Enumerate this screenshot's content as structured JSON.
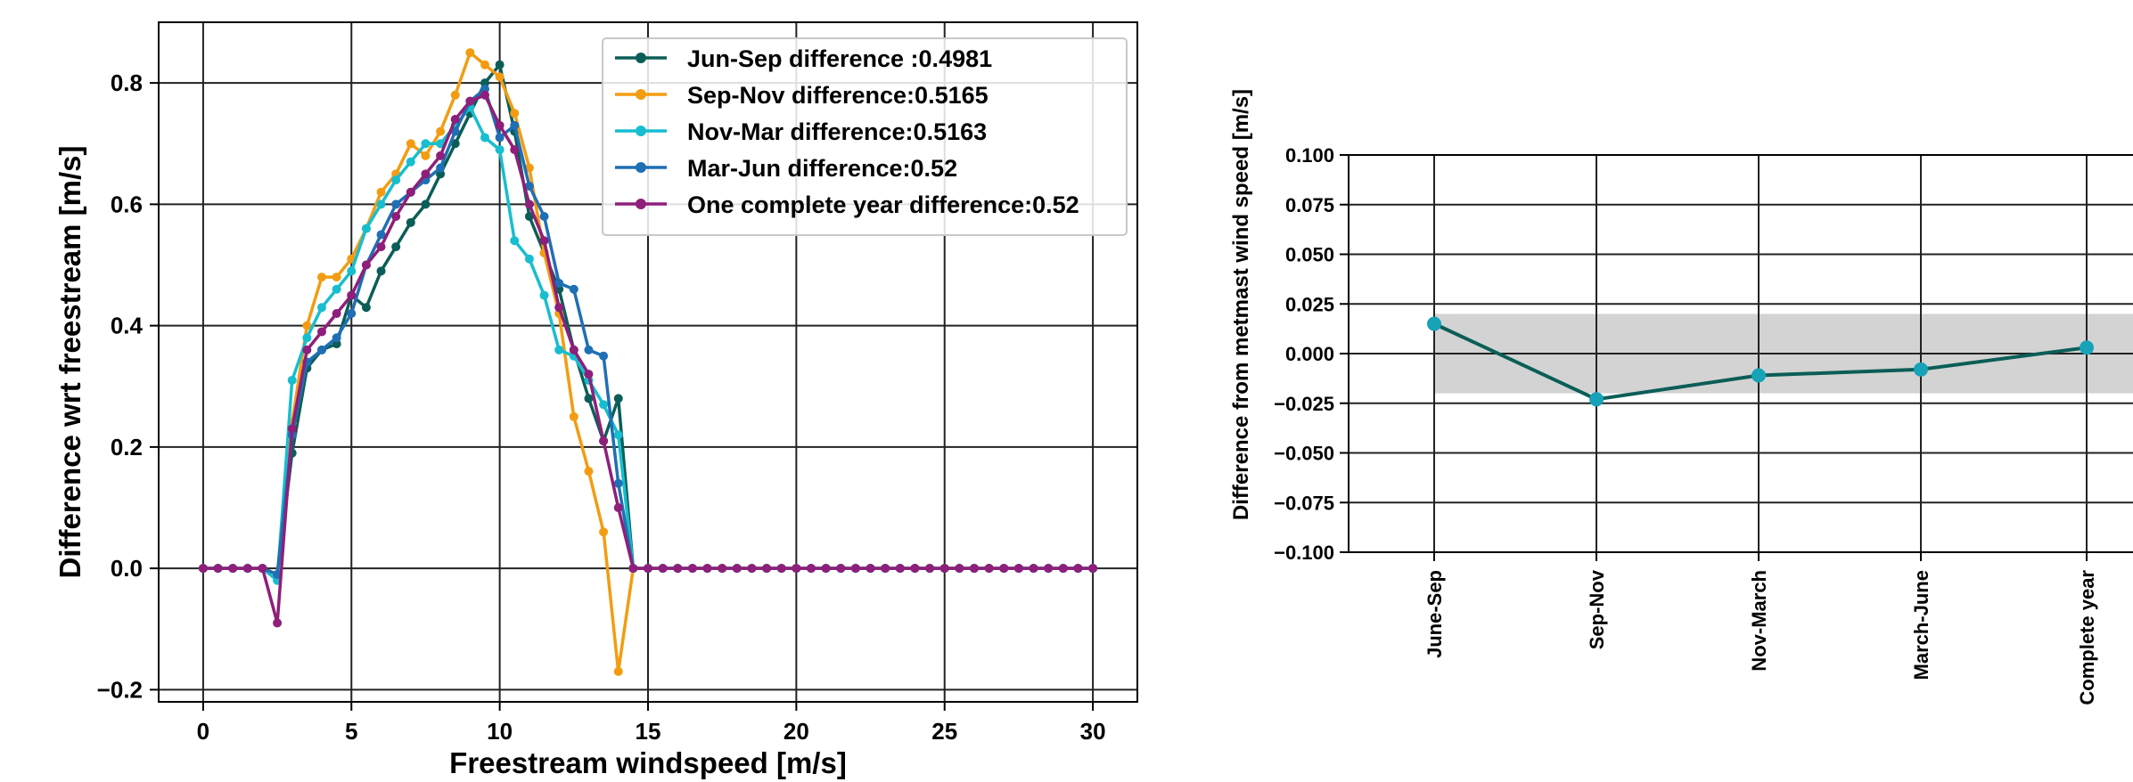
{
  "chart_data": [
    {
      "type": "line",
      "xlabel": "Freestream windspeed [m/s]",
      "ylabel": "Difference wrt freestream [m/s]",
      "xlim": [
        -1.5,
        31.5
      ],
      "ylim": [
        -0.22,
        0.9
      ],
      "xticks": [
        0,
        5,
        10,
        15,
        20,
        25,
        30
      ],
      "yticks": [
        -0.2,
        0.0,
        0.2,
        0.4,
        0.6,
        0.8
      ],
      "xtick_labels": [
        "0",
        "5",
        "10",
        "15",
        "20",
        "25",
        "30"
      ],
      "ytick_labels": [
        "−0.2",
        "0.0",
        "0.2",
        "0.4",
        "0.6",
        "0.8"
      ],
      "grid": true,
      "legend_position": "top-right",
      "x": [
        0,
        0.5,
        1,
        1.5,
        2,
        2.5,
        3,
        3.5,
        4,
        4.5,
        5,
        5.5,
        6,
        6.5,
        7,
        7.5,
        8,
        8.5,
        9,
        9.5,
        10,
        10.5,
        11,
        11.5,
        12,
        12.5,
        13,
        13.5,
        14,
        14.5,
        15,
        15.5,
        16,
        16.5,
        17,
        17.5,
        18,
        18.5,
        19,
        19.5,
        20,
        20.5,
        21,
        21.5,
        22,
        22.5,
        23,
        23.5,
        24,
        24.5,
        25,
        25.5,
        26,
        26.5,
        27,
        27.5,
        28,
        28.5,
        29,
        29.5,
        30
      ],
      "series": [
        {
          "name": "Jun-Sep difference :0.4981",
          "color": "#0b5e57",
          "values": [
            0,
            0,
            0,
            0,
            0,
            -0.01,
            0.19,
            0.33,
            0.36,
            0.37,
            0.45,
            0.43,
            0.49,
            0.53,
            0.57,
            0.6,
            0.65,
            0.7,
            0.75,
            0.8,
            0.83,
            0.72,
            0.58,
            0.52,
            0.46,
            0.36,
            0.28,
            0.21,
            0.28,
            0,
            0,
            0,
            0,
            0,
            0,
            0,
            0,
            0,
            0,
            0,
            0,
            0,
            0,
            0,
            0,
            0,
            0,
            0,
            0,
            0,
            0,
            0,
            0,
            0,
            0,
            0,
            0,
            0,
            0,
            0,
            0
          ]
        },
        {
          "name": "Sep-Nov difference:0.5165",
          "color": "#f39c12",
          "values": [
            0,
            0,
            0,
            0,
            0,
            -0.01,
            0.24,
            0.4,
            0.48,
            0.48,
            0.51,
            0.56,
            0.62,
            0.65,
            0.7,
            0.68,
            0.72,
            0.78,
            0.85,
            0.83,
            0.81,
            0.75,
            0.66,
            0.52,
            0.42,
            0.25,
            0.16,
            0.06,
            -0.17,
            0,
            0,
            0,
            0,
            0,
            0,
            0,
            0,
            0,
            0,
            0,
            0,
            0,
            0,
            0,
            0,
            0,
            0,
            0,
            0,
            0,
            0,
            0,
            0,
            0,
            0,
            0,
            0,
            0,
            0,
            0,
            0
          ]
        },
        {
          "name": "Nov-Mar difference:0.5163",
          "color": "#17becf",
          "values": [
            0,
            0,
            0,
            0,
            0,
            -0.02,
            0.31,
            0.38,
            0.43,
            0.46,
            0.49,
            0.56,
            0.6,
            0.64,
            0.67,
            0.7,
            0.7,
            0.73,
            0.76,
            0.71,
            0.69,
            0.54,
            0.51,
            0.45,
            0.36,
            0.35,
            0.31,
            0.27,
            0.22,
            0,
            0,
            0,
            0,
            0,
            0,
            0,
            0,
            0,
            0,
            0,
            0,
            0,
            0,
            0,
            0,
            0,
            0,
            0,
            0,
            0,
            0,
            0,
            0,
            0,
            0,
            0,
            0,
            0,
            0,
            0,
            0
          ]
        },
        {
          "name": "Mar-Jun difference:0.52",
          "color": "#1f6fb4",
          "values": [
            0,
            0,
            0,
            0,
            0,
            -0.01,
            0.22,
            0.34,
            0.36,
            0.38,
            0.42,
            0.5,
            0.55,
            0.6,
            0.62,
            0.64,
            0.66,
            0.72,
            0.77,
            0.79,
            0.71,
            0.73,
            0.63,
            0.58,
            0.47,
            0.46,
            0.36,
            0.35,
            0.14,
            0,
            0,
            0,
            0,
            0,
            0,
            0,
            0,
            0,
            0,
            0,
            0,
            0,
            0,
            0,
            0,
            0,
            0,
            0,
            0,
            0,
            0,
            0,
            0,
            0,
            0,
            0,
            0,
            0,
            0,
            0,
            0
          ]
        },
        {
          "name": "One complete year difference:0.52",
          "color": "#8e1f7a",
          "values": [
            0,
            0,
            0,
            0,
            0,
            -0.09,
            0.23,
            0.36,
            0.39,
            0.42,
            0.45,
            0.5,
            0.53,
            0.58,
            0.62,
            0.65,
            0.68,
            0.74,
            0.77,
            0.78,
            0.73,
            0.69,
            0.6,
            0.54,
            0.43,
            0.36,
            0.32,
            0.21,
            0.1,
            0,
            0,
            0,
            0,
            0,
            0,
            0,
            0,
            0,
            0,
            0,
            0,
            0,
            0,
            0,
            0,
            0,
            0,
            0,
            0,
            0,
            0,
            0,
            0,
            0,
            0,
            0,
            0,
            0,
            0,
            0,
            0
          ]
        }
      ]
    },
    {
      "type": "line",
      "xlabel": "",
      "ylabel": "Difference from metmast wind speed [m/s]",
      "categories": [
        "June-Sep",
        "Sep-Nov",
        "Nov-March",
        "March-June",
        "Complete year"
      ],
      "values": [
        0.015,
        -0.023,
        -0.011,
        -0.008,
        0.003
      ],
      "band": [
        -0.02,
        0.02
      ],
      "band_color": "#d3d3d3",
      "line_color": "#0b5e57",
      "marker_color": "#17a2b8",
      "ylim": [
        -0.1,
        0.1
      ],
      "yticks": [
        0.1,
        0.075,
        0.05,
        0.025,
        0.0,
        -0.025,
        -0.05,
        -0.075,
        -0.1
      ],
      "ytick_labels": [
        "0.100",
        "0.075",
        "0.050",
        "0.025",
        "0.000",
        "−0.025",
        "−0.050",
        "−0.075",
        "−0.100"
      ],
      "grid": true
    }
  ]
}
